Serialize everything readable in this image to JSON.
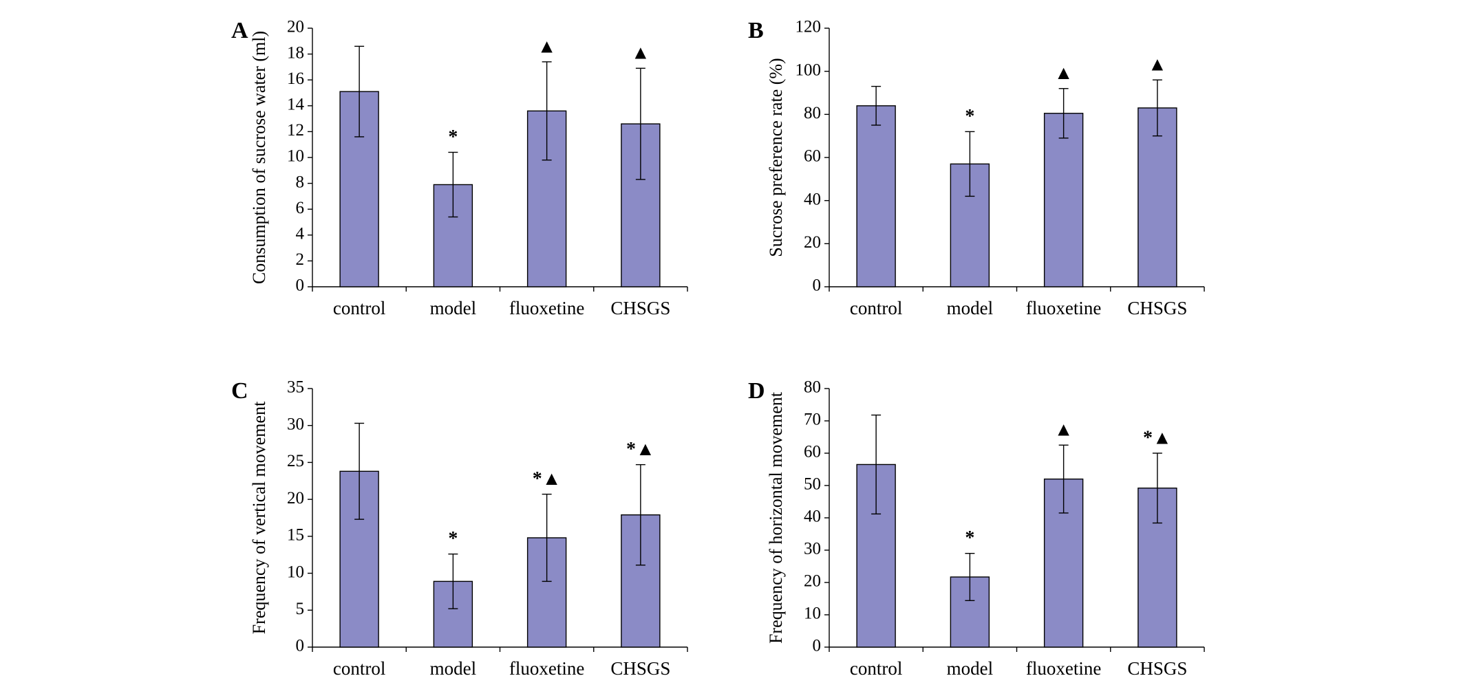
{
  "chart_data": [
    {
      "type": "bar",
      "panel": "A",
      "ylabel": "Consumption of sucrose water (ml)",
      "categories": [
        "control",
        "model",
        "fluoxetine",
        "CHSGS"
      ],
      "values": [
        15.1,
        7.9,
        13.6,
        12.6
      ],
      "errors": [
        3.5,
        2.5,
        3.8,
        4.3
      ],
      "annotations": [
        null,
        "*",
        "▲",
        "▲"
      ],
      "color": "#8b8bc6",
      "ylim": [
        0,
        20
      ],
      "yticks": [
        0,
        2,
        4,
        6,
        8,
        10,
        12,
        14,
        16,
        18,
        20
      ]
    },
    {
      "type": "bar",
      "panel": "B",
      "ylabel": "Sucrose preference rate (%)",
      "categories": [
        "control",
        "model",
        "fluoxetine",
        "CHSGS"
      ],
      "values": [
        84,
        57,
        80.5,
        83
      ],
      "errors": [
        9,
        15,
        11.5,
        13
      ],
      "annotations": [
        null,
        "*",
        "▲",
        "▲"
      ],
      "color": "#8b8bc6",
      "ylim": [
        0,
        120
      ],
      "yticks": [
        0,
        20,
        40,
        60,
        80,
        100,
        120
      ]
    },
    {
      "type": "bar",
      "panel": "C",
      "ylabel": "Frequency of vertical movement",
      "categories": [
        "control",
        "model",
        "fluoxetine",
        "CHSGS"
      ],
      "values": [
        23.8,
        8.9,
        14.8,
        17.9
      ],
      "errors": [
        6.5,
        3.7,
        5.9,
        6.8
      ],
      "annotations": [
        null,
        "*",
        "*▲",
        "*▲"
      ],
      "color": "#8b8bc6",
      "ylim": [
        0,
        35
      ],
      "yticks": [
        0,
        5,
        10,
        15,
        20,
        25,
        30,
        35
      ]
    },
    {
      "type": "bar",
      "panel": "D",
      "ylabel": "Frequency of horizontal movement",
      "categories": [
        "control",
        "model",
        "fluoxetine",
        "CHSGS"
      ],
      "values": [
        56.5,
        21.7,
        52,
        49.2
      ],
      "errors": [
        15.3,
        7.3,
        10.5,
        10.8
      ],
      "annotations": [
        null,
        "*",
        "▲",
        "*▲"
      ],
      "color": "#8b8bc6",
      "ylim": [
        0,
        80
      ],
      "yticks": [
        0,
        10,
        20,
        30,
        40,
        50,
        60,
        70,
        80
      ]
    }
  ]
}
